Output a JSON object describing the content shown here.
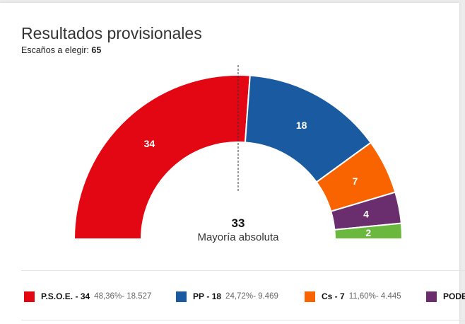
{
  "header": {
    "title": "Resultados provisionales",
    "subtitle_label": "Escaños a elegir:",
    "subtitle_value": "65"
  },
  "chart_data": {
    "type": "parliament-semicircle",
    "total_seats": 65,
    "majority": {
      "value": "33",
      "label": "Mayoría absoluta"
    },
    "series": [
      {
        "name": "P.S.O.E.",
        "seats": 34,
        "percent": "48,36%",
        "votes": "18.527",
        "color": "#e30613"
      },
      {
        "name": "PP",
        "seats": 18,
        "percent": "24,72%",
        "votes": "9.469",
        "color": "#1a5aa0"
      },
      {
        "name": "Cs",
        "seats": 7,
        "percent": "11,60%",
        "votes": "4.445",
        "color": "#fa6400"
      },
      {
        "name": "PODE",
        "seats": 4,
        "color": "#6a2d6e"
      },
      {
        "name": "",
        "seats": 2,
        "color": "#6ab93e"
      }
    ]
  },
  "legend": [
    {
      "name": "P.S.O.E.",
      "seats": "34",
      "percent": "48,36%",
      "votes": "18.527",
      "color": "#e30613"
    },
    {
      "name": "PP",
      "seats": "18",
      "percent": "24,72%",
      "votes": "9.469",
      "color": "#1a5aa0"
    },
    {
      "name": "Cs",
      "seats": "7",
      "percent": "11,60%",
      "votes": "4.445",
      "color": "#fa6400"
    },
    {
      "name": "PODE",
      "color": "#6a2d6e"
    }
  ]
}
